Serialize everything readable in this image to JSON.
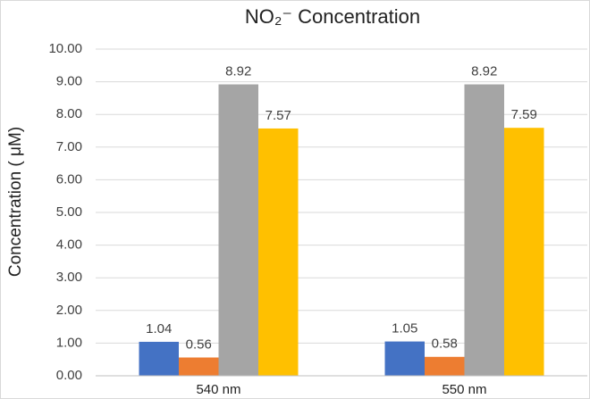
{
  "chart_data": {
    "type": "bar",
    "title": "NO₂⁻ Concentration",
    "y_label": "Concentration ( μM)",
    "categories": [
      "540 nm",
      "550 nm"
    ],
    "series": [
      {
        "color": "#4472c4",
        "values": [
          1.04,
          1.05
        ]
      },
      {
        "color": "#ed7d31",
        "values": [
          0.56,
          0.58
        ]
      },
      {
        "color": "#a5a5a5",
        "values": [
          8.92,
          8.92
        ]
      },
      {
        "color": "#ffc000",
        "values": [
          7.57,
          7.59
        ]
      }
    ],
    "ylim": [
      0,
      10
    ],
    "yticks": [
      {
        "value": 0,
        "label": "0.00"
      },
      {
        "value": 1,
        "label": "1.00"
      },
      {
        "value": 2,
        "label": "2.00"
      },
      {
        "value": 3,
        "label": "3.00"
      },
      {
        "value": 4,
        "label": "4.00"
      },
      {
        "value": 5,
        "label": "5.00"
      },
      {
        "value": 6,
        "label": "6.00"
      },
      {
        "value": 7,
        "label": "7.00"
      },
      {
        "value": 8,
        "label": "8.00"
      },
      {
        "value": 9,
        "label": "9.00"
      },
      {
        "value": 10,
        "label": "10.00"
      }
    ],
    "grid": true,
    "data_labels": true
  }
}
